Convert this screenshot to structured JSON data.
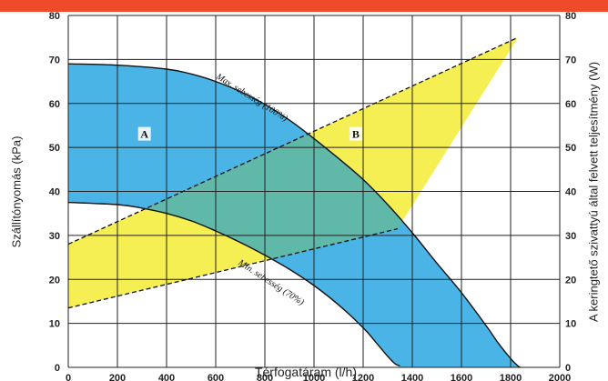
{
  "colors": {
    "top_bar": "#ef4a2a",
    "region_a": "#4ab4e6",
    "region_b": "#f5ef54",
    "overlap": "#5fb8a8",
    "grid": "#222222"
  },
  "chart_data": {
    "type": "area",
    "xlabel": "Térfogatáram (l/h)",
    "ylabel_left": "Szállítónyomás (kPa)",
    "ylabel_right": "A keringtető szivattyú által felvett teljesítmény (W)",
    "xlim": [
      0,
      2000
    ],
    "ylim_left": [
      0,
      80
    ],
    "ylim_right": [
      0,
      80
    ],
    "x_ticks": [
      "0",
      "200",
      "400",
      "600",
      "800",
      "1000",
      "1200",
      "1400",
      "1600",
      "1800",
      "2000"
    ],
    "y_ticks_left": [
      "0",
      "10",
      "20",
      "30",
      "40",
      "50",
      "60",
      "70",
      "80"
    ],
    "y_ticks_right": [
      "0",
      "10",
      "20",
      "30",
      "40",
      "50",
      "60",
      "70",
      "80"
    ],
    "grid": true,
    "region_labels": {
      "a": "A",
      "b": "B"
    },
    "curve_labels": {
      "max": "Max. sebesség (100%)",
      "min": "Min. sebesség (70%)"
    },
    "pump_curves": [
      {
        "name": "Max. sebesség (100%)",
        "x": [
          0,
          200,
          400,
          500,
          600,
          700,
          800,
          900,
          1000,
          1100,
          1200,
          1300,
          1400,
          1500,
          1600,
          1700,
          1750,
          1800,
          1830,
          1840
        ],
        "y": [
          69,
          68.7,
          67.8,
          66.7,
          65,
          62.7,
          59.8,
          56.2,
          52,
          47.5,
          42.7,
          37,
          30.6,
          23.7,
          17,
          9.5,
          5.5,
          2,
          0.3,
          0
        ]
      },
      {
        "name": "Min. sebesség (70%)",
        "x": [
          0,
          200,
          300,
          400,
          500,
          600,
          700,
          800,
          900,
          1000,
          1100,
          1200,
          1250,
          1300,
          1330,
          1350
        ],
        "y": [
          37.5,
          37,
          36.2,
          35,
          33.3,
          31,
          28.4,
          25.5,
          22.3,
          18.6,
          14.2,
          9,
          5.8,
          2.5,
          0.8,
          0.3
        ]
      }
    ],
    "power_bounds": [
      {
        "name": "Max. sebesség (100%)",
        "x": [
          0,
          1830
        ],
        "y": [
          28,
          75
        ]
      },
      {
        "name": "Min. sebesség (70%)",
        "x": [
          0,
          1340
        ],
        "y": [
          13.5,
          31.5
        ]
      }
    ]
  }
}
